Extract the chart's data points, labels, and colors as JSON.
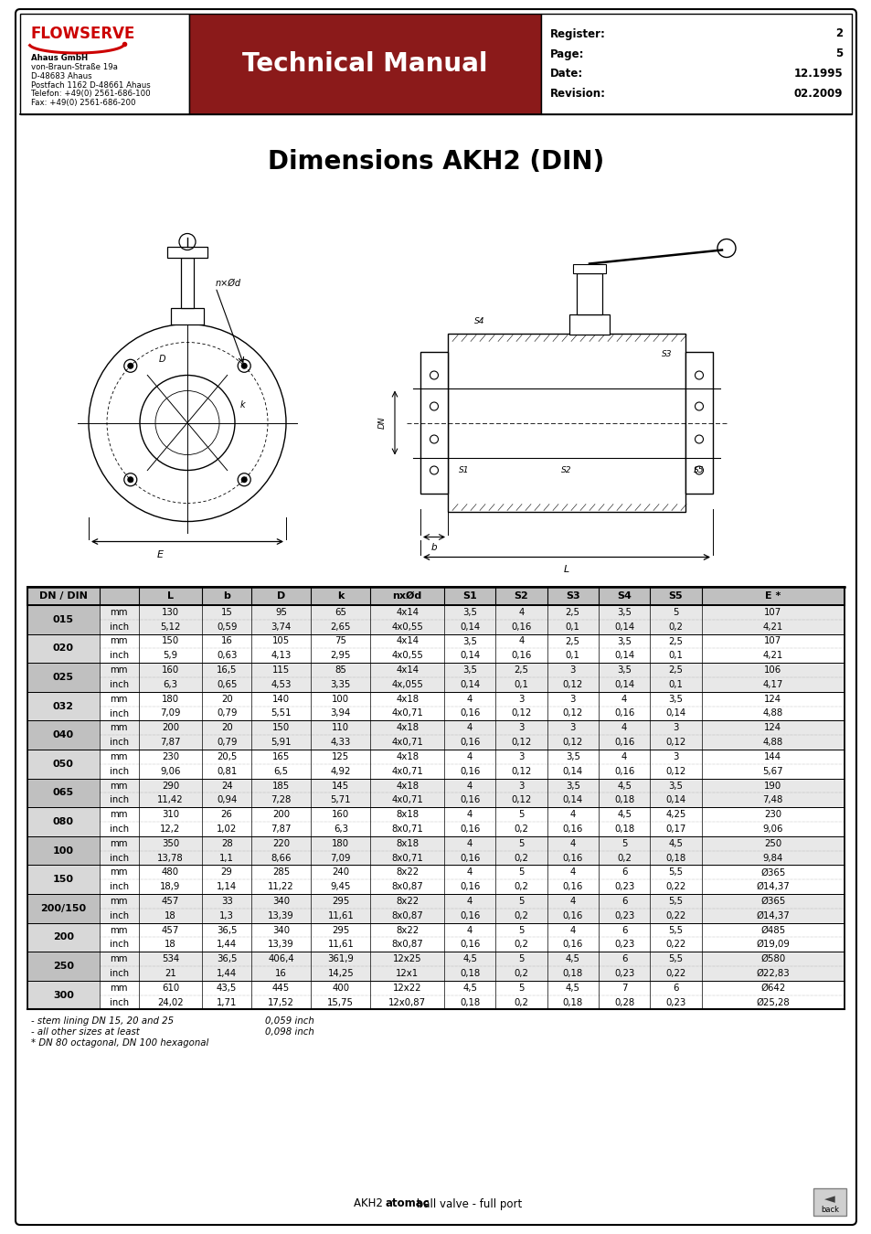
{
  "page_bg": "#ffffff",
  "header": {
    "company": "Ahaus GmbH",
    "address_lines": [
      "von-Braun-Straße 19a",
      "D-48683 Ahaus",
      "Postfach 1162 D-48661 Ahaus",
      "Telefon: +49(0) 2561-686-100",
      "Fax: +49(0) 2561-686-200"
    ],
    "tech_manual_text": "Technical Manual",
    "tech_manual_bg": "#8B1A1A",
    "register_label": "Register:",
    "register_value": "2",
    "page_label": "Page:",
    "page_value": "5",
    "date_label": "Date:",
    "date_value": "12.1995",
    "revision_label": "Revision:",
    "revision_value": "02.2009",
    "flowserve_color": "#cc0000"
  },
  "title": "Dimensions AKH2 (DIN)",
  "rows": [
    {
      "dn": "015",
      "unit": "mm",
      "L": "130",
      "b": "15",
      "D": "95",
      "k": "65",
      "nxd": "4x14",
      "S1": "3,5",
      "S2": "4",
      "S3": "2,5",
      "S4": "3,5",
      "S5": "5",
      "E": "107"
    },
    {
      "dn": "015",
      "unit": "inch",
      "L": "5,12",
      "b": "0,59",
      "D": "3,74",
      "k": "2,65",
      "nxd": "4x0,55",
      "S1": "0,14",
      "S2": "0,16",
      "S3": "0,1",
      "S4": "0,14",
      "S5": "0,2",
      "E": "4,21"
    },
    {
      "dn": "020",
      "unit": "mm",
      "L": "150",
      "b": "16",
      "D": "105",
      "k": "75",
      "nxd": "4x14",
      "S1": "3,5",
      "S2": "4",
      "S3": "2,5",
      "S4": "3,5",
      "S5": "2,5",
      "E": "107"
    },
    {
      "dn": "020",
      "unit": "inch",
      "L": "5,9",
      "b": "0,63",
      "D": "4,13",
      "k": "2,95",
      "nxd": "4x0,55",
      "S1": "0,14",
      "S2": "0,16",
      "S3": "0,1",
      "S4": "0,14",
      "S5": "0,1",
      "E": "4,21"
    },
    {
      "dn": "025",
      "unit": "mm",
      "L": "160",
      "b": "16,5",
      "D": "115",
      "k": "85",
      "nxd": "4x14",
      "S1": "3,5",
      "S2": "2,5",
      "S3": "3",
      "S4": "3,5",
      "S5": "2,5",
      "E": "106"
    },
    {
      "dn": "025",
      "unit": "inch",
      "L": "6,3",
      "b": "0,65",
      "D": "4,53",
      "k": "3,35",
      "nxd": "4x,055",
      "S1": "0,14",
      "S2": "0,1",
      "S3": "0,12",
      "S4": "0,14",
      "S5": "0,1",
      "E": "4,17"
    },
    {
      "dn": "032",
      "unit": "mm",
      "L": "180",
      "b": "20",
      "D": "140",
      "k": "100",
      "nxd": "4x18",
      "S1": "4",
      "S2": "3",
      "S3": "3",
      "S4": "4",
      "S5": "3,5",
      "E": "124"
    },
    {
      "dn": "032",
      "unit": "inch",
      "L": "7,09",
      "b": "0,79",
      "D": "5,51",
      "k": "3,94",
      "nxd": "4x0,71",
      "S1": "0,16",
      "S2": "0,12",
      "S3": "0,12",
      "S4": "0,16",
      "S5": "0,14",
      "E": "4,88"
    },
    {
      "dn": "040",
      "unit": "mm",
      "L": "200",
      "b": "20",
      "D": "150",
      "k": "110",
      "nxd": "4x18",
      "S1": "4",
      "S2": "3",
      "S3": "3",
      "S4": "4",
      "S5": "3",
      "E": "124"
    },
    {
      "dn": "040",
      "unit": "inch",
      "L": "7,87",
      "b": "0,79",
      "D": "5,91",
      "k": "4,33",
      "nxd": "4x0,71",
      "S1": "0,16",
      "S2": "0,12",
      "S3": "0,12",
      "S4": "0,16",
      "S5": "0,12",
      "E": "4,88"
    },
    {
      "dn": "050",
      "unit": "mm",
      "L": "230",
      "b": "20,5",
      "D": "165",
      "k": "125",
      "nxd": "4x18",
      "S1": "4",
      "S2": "3",
      "S3": "3,5",
      "S4": "4",
      "S5": "3",
      "E": "144"
    },
    {
      "dn": "050",
      "unit": "inch",
      "L": "9,06",
      "b": "0,81",
      "D": "6,5",
      "k": "4,92",
      "nxd": "4x0,71",
      "S1": "0,16",
      "S2": "0,12",
      "S3": "0,14",
      "S4": "0,16",
      "S5": "0,12",
      "E": "5,67"
    },
    {
      "dn": "065",
      "unit": "mm",
      "L": "290",
      "b": "24",
      "D": "185",
      "k": "145",
      "nxd": "4x18",
      "S1": "4",
      "S2": "3",
      "S3": "3,5",
      "S4": "4,5",
      "S5": "3,5",
      "E": "190"
    },
    {
      "dn": "065",
      "unit": "inch",
      "L": "11,42",
      "b": "0,94",
      "D": "7,28",
      "k": "5,71",
      "nxd": "4x0,71",
      "S1": "0,16",
      "S2": "0,12",
      "S3": "0,14",
      "S4": "0,18",
      "S5": "0,14",
      "E": "7,48"
    },
    {
      "dn": "080",
      "unit": "mm",
      "L": "310",
      "b": "26",
      "D": "200",
      "k": "160",
      "nxd": "8x18",
      "S1": "4",
      "S2": "5",
      "S3": "4",
      "S4": "4,5",
      "S5": "4,25",
      "E": "230"
    },
    {
      "dn": "080",
      "unit": "inch",
      "L": "12,2",
      "b": "1,02",
      "D": "7,87",
      "k": "6,3",
      "nxd": "8x0,71",
      "S1": "0,16",
      "S2": "0,2",
      "S3": "0,16",
      "S4": "0,18",
      "S5": "0,17",
      "E": "9,06"
    },
    {
      "dn": "100",
      "unit": "mm",
      "L": "350",
      "b": "28",
      "D": "220",
      "k": "180",
      "nxd": "8x18",
      "S1": "4",
      "S2": "5",
      "S3": "4",
      "S4": "5",
      "S5": "4,5",
      "E": "250"
    },
    {
      "dn": "100",
      "unit": "inch",
      "L": "13,78",
      "b": "1,1",
      "D": "8,66",
      "k": "7,09",
      "nxd": "8x0,71",
      "S1": "0,16",
      "S2": "0,2",
      "S3": "0,16",
      "S4": "0,2",
      "S5": "0,18",
      "E": "9,84"
    },
    {
      "dn": "150",
      "unit": "mm",
      "L": "480",
      "b": "29",
      "D": "285",
      "k": "240",
      "nxd": "8x22",
      "S1": "4",
      "S2": "5",
      "S3": "4",
      "S4": "6",
      "S5": "5,5",
      "E": "Ø365"
    },
    {
      "dn": "150",
      "unit": "inch",
      "L": "18,9",
      "b": "1,14",
      "D": "11,22",
      "k": "9,45",
      "nxd": "8x0,87",
      "S1": "0,16",
      "S2": "0,2",
      "S3": "0,16",
      "S4": "0,23",
      "S5": "0,22",
      "E": "Ø14,37"
    },
    {
      "dn": "200/150",
      "unit": "mm",
      "L": "457",
      "b": "33",
      "D": "340",
      "k": "295",
      "nxd": "8x22",
      "S1": "4",
      "S2": "5",
      "S3": "4",
      "S4": "6",
      "S5": "5,5",
      "E": "Ø365"
    },
    {
      "dn": "200/150",
      "unit": "inch",
      "L": "18",
      "b": "1,3",
      "D": "13,39",
      "k": "11,61",
      "nxd": "8x0,87",
      "S1": "0,16",
      "S2": "0,2",
      "S3": "0,16",
      "S4": "0,23",
      "S5": "0,22",
      "E": "Ø14,37"
    },
    {
      "dn": "200",
      "unit": "mm",
      "L": "457",
      "b": "36,5",
      "D": "340",
      "k": "295",
      "nxd": "8x22",
      "S1": "4",
      "S2": "5",
      "S3": "4",
      "S4": "6",
      "S5": "5,5",
      "E": "Ø485"
    },
    {
      "dn": "200",
      "unit": "inch",
      "L": "18",
      "b": "1,44",
      "D": "13,39",
      "k": "11,61",
      "nxd": "8x0,87",
      "S1": "0,16",
      "S2": "0,2",
      "S3": "0,16",
      "S4": "0,23",
      "S5": "0,22",
      "E": "Ø19,09"
    },
    {
      "dn": "250",
      "unit": "mm",
      "L": "534",
      "b": "36,5",
      "D": "406,4",
      "k": "361,9",
      "nxd": "12x25",
      "S1": "4,5",
      "S2": "5",
      "S3": "4,5",
      "S4": "6",
      "S5": "5,5",
      "E": "Ø580"
    },
    {
      "dn": "250",
      "unit": "inch",
      "L": "21",
      "b": "1,44",
      "D": "16",
      "k": "14,25",
      "nxd": "12x1",
      "S1": "0,18",
      "S2": "0,2",
      "S3": "0,18",
      "S4": "0,23",
      "S5": "0,22",
      "E": "Ø22,83"
    },
    {
      "dn": "300",
      "unit": "mm",
      "L": "610",
      "b": "43,5",
      "D": "445",
      "k": "400",
      "nxd": "12x22",
      "S1": "4,5",
      "S2": "5",
      "S3": "4,5",
      "S4": "7",
      "S5": "6",
      "E": "Ø642"
    },
    {
      "dn": "300",
      "unit": "inch",
      "L": "24,02",
      "b": "1,71",
      "D": "17,52",
      "k": "15,75",
      "nxd": "12x0,87",
      "S1": "0,18",
      "S2": "0,2",
      "S3": "0,18",
      "S4": "0,28",
      "S5": "0,23",
      "E": "Ø25,28"
    }
  ],
  "footer_notes": [
    "- stem lining DN 15, 20 and 25",
    "- all other sizes at least",
    "* DN 80 octagonal, DN 100 hexagonal"
  ],
  "footer_note_right": [
    "0,059 inch",
    "0,098 inch"
  ],
  "shaded_dns": [
    "015",
    "025",
    "040",
    "065",
    "100",
    "200/150",
    "250"
  ]
}
